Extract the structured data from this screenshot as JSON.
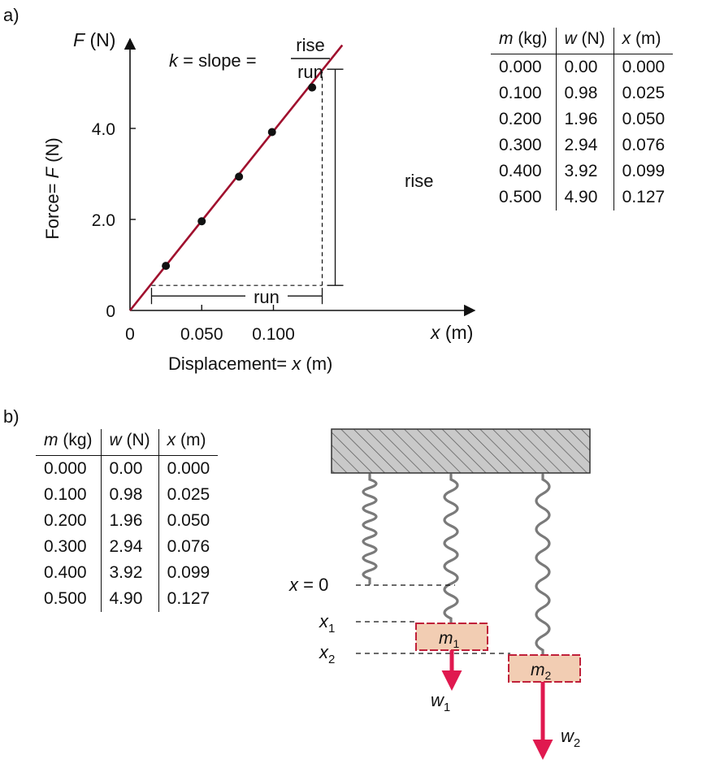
{
  "panel_a": {
    "label": "a)",
    "equation": {
      "lhs_var": "k",
      "lhs_rest": " = slope = ",
      "numerator": "rise",
      "denominator": "run"
    },
    "y_axis_label": {
      "var": "F",
      "unit": " (N)"
    },
    "y_axis_side_label": {
      "prefix": "Force= ",
      "var": "F",
      "unit": " (N)"
    },
    "x_axis_label": {
      "var": "x",
      "unit": " (m)"
    },
    "x_axis_bottom_label": {
      "prefix": "Displacement= ",
      "var": "x",
      "unit": " (m)"
    },
    "rise_label": "rise",
    "run_label": "run",
    "table": {
      "headers": [
        {
          "var": "m",
          "unit": " (kg)"
        },
        {
          "var": "w",
          "unit": " (N)"
        },
        {
          "var": "x",
          "unit": " (m)"
        }
      ],
      "rows": [
        [
          "0.000",
          "0.00",
          "0.000"
        ],
        [
          "0.100",
          "0.98",
          "0.025"
        ],
        [
          "0.200",
          "1.96",
          "0.050"
        ],
        [
          "0.300",
          "2.94",
          "0.076"
        ],
        [
          "0.400",
          "3.92",
          "0.099"
        ],
        [
          "0.500",
          "4.90",
          "0.127"
        ]
      ]
    }
  },
  "panel_b": {
    "label": "b)",
    "table": {
      "headers": [
        {
          "var": "m",
          "unit": " (kg)"
        },
        {
          "var": "w",
          "unit": " (N)"
        },
        {
          "var": "x",
          "unit": " (m)"
        }
      ],
      "rows": [
        [
          "0.000",
          "0.00",
          "0.000"
        ],
        [
          "0.100",
          "0.98",
          "0.025"
        ],
        [
          "0.200",
          "1.96",
          "0.050"
        ],
        [
          "0.300",
          "2.94",
          "0.076"
        ],
        [
          "0.400",
          "3.92",
          "0.099"
        ],
        [
          "0.500",
          "4.90",
          "0.127"
        ]
      ]
    },
    "diagram": {
      "x0_label": {
        "var": "x",
        "rest": " = 0"
      },
      "x1_label": {
        "var": "x",
        "sub": "1"
      },
      "x2_label": {
        "var": "x",
        "sub": "2"
      },
      "m1_label": {
        "var": "m",
        "sub": "1"
      },
      "m2_label": {
        "var": "m",
        "sub": "2"
      },
      "w1_label": {
        "var": "w",
        "sub": "1"
      },
      "w2_label": {
        "var": "w",
        "sub": "2"
      },
      "colors": {
        "block_fill": "#f2cdb3",
        "block_edge": "#c0203a",
        "arrow": "#e0194f",
        "support": "#c9c9c9",
        "spring": "#7a7a7a"
      }
    }
  },
  "chart_data": {
    "type": "scatter",
    "xlabel": "Displacement= x (m)",
    "ylabel": "Force= F (N)",
    "x_ticks": [
      "0",
      "0.050",
      "0.100"
    ],
    "y_ticks": [
      "0",
      "2.0",
      "4.0"
    ],
    "x_tick_values": [
      0,
      0.05,
      0.1
    ],
    "y_tick_values": [
      0,
      2.0,
      4.0
    ],
    "xlim": [
      0,
      0.16
    ],
    "ylim": [
      0,
      5.9
    ],
    "points": [
      {
        "x": 0.025,
        "y": 0.98
      },
      {
        "x": 0.05,
        "y": 1.96
      },
      {
        "x": 0.076,
        "y": 2.94
      },
      {
        "x": 0.099,
        "y": 3.92
      },
      {
        "x": 0.127,
        "y": 4.9
      }
    ],
    "fit_line": {
      "x": [
        0,
        0.148
      ],
      "y": [
        0,
        5.83
      ]
    },
    "rise_run": {
      "x": [
        0.015,
        0.134
      ],
      "y": [
        0.55,
        5.3
      ]
    },
    "colors": {
      "line": "#a0102e",
      "points": "#111111"
    },
    "grid": false
  }
}
